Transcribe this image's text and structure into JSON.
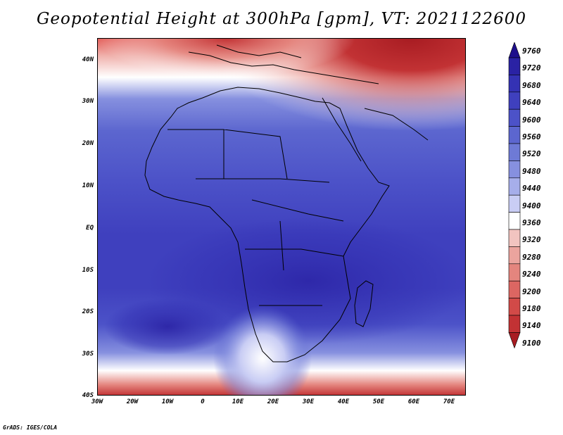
{
  "title": "Geopotential Height at 300hPa [gpm], VT: 2021122600",
  "credit": "GrADS: IGES/COLA",
  "map": {
    "lat_labels": [
      "40N",
      "30N",
      "20N",
      "10N",
      "EQ",
      "10S",
      "20S",
      "30S",
      "40S"
    ],
    "lon_labels": [
      "30W",
      "20W",
      "10W",
      "0",
      "10E",
      "20E",
      "30E",
      "40E",
      "50E",
      "60E",
      "70E"
    ],
    "region": "Africa"
  },
  "colorbar": {
    "levels": [
      "9760",
      "9720",
      "9680",
      "9640",
      "9600",
      "9560",
      "9520",
      "9480",
      "9440",
      "9400",
      "9360",
      "9320",
      "9280",
      "9240",
      "9200",
      "9180",
      "9140",
      "9100"
    ],
    "colors_top_to_bottom": [
      "#1e0f8c",
      "#2a22a4",
      "#3432b4",
      "#3f40be",
      "#4c52c8",
      "#5c66cf",
      "#6e7ad6",
      "#8690df",
      "#a6aeea",
      "#c9cdf4",
      "#ffffff",
      "#f2c4c0",
      "#eba49e",
      "#e4857e",
      "#dc6662",
      "#d24a48",
      "#c23234",
      "#a81c22"
    ]
  },
  "chart_data": {
    "type": "heatmap",
    "title": "Geopotential Height at 300hPa [gpm], VT: 2021122600",
    "x_range": [
      -30,
      75
    ],
    "y_range": [
      -40,
      45
    ],
    "x_ticks": [
      "30W",
      "20W",
      "10W",
      "0",
      "10E",
      "20E",
      "30E",
      "40E",
      "50E",
      "60E",
      "70E"
    ],
    "y_ticks": [
      "40N",
      "30N",
      "20N",
      "10N",
      "EQ",
      "10S",
      "20S",
      "30S",
      "40S"
    ],
    "colorbar_levels": [
      9760,
      9720,
      9680,
      9640,
      9600,
      9560,
      9520,
      9480,
      9440,
      9400,
      9360,
      9320,
      9280,
      9240,
      9200,
      9180,
      9140,
      9100
    ],
    "approx_values": [
      {
        "region": "Mediterranean / Eurasia (north edge)",
        "value": 9140
      },
      {
        "region": "North Africa (~30N)",
        "value": 9400
      },
      {
        "region": "Sahel (~15N)",
        "value": 9600
      },
      {
        "region": "Equatorial Africa",
        "value": 9680
      },
      {
        "region": "Southern Africa (~20S)",
        "value": 9720
      },
      {
        "region": "South Atlantic trough (~35S, 15E)",
        "value": 9400
      },
      {
        "region": "Southern edge (~40S)",
        "value": 9200
      }
    ]
  }
}
